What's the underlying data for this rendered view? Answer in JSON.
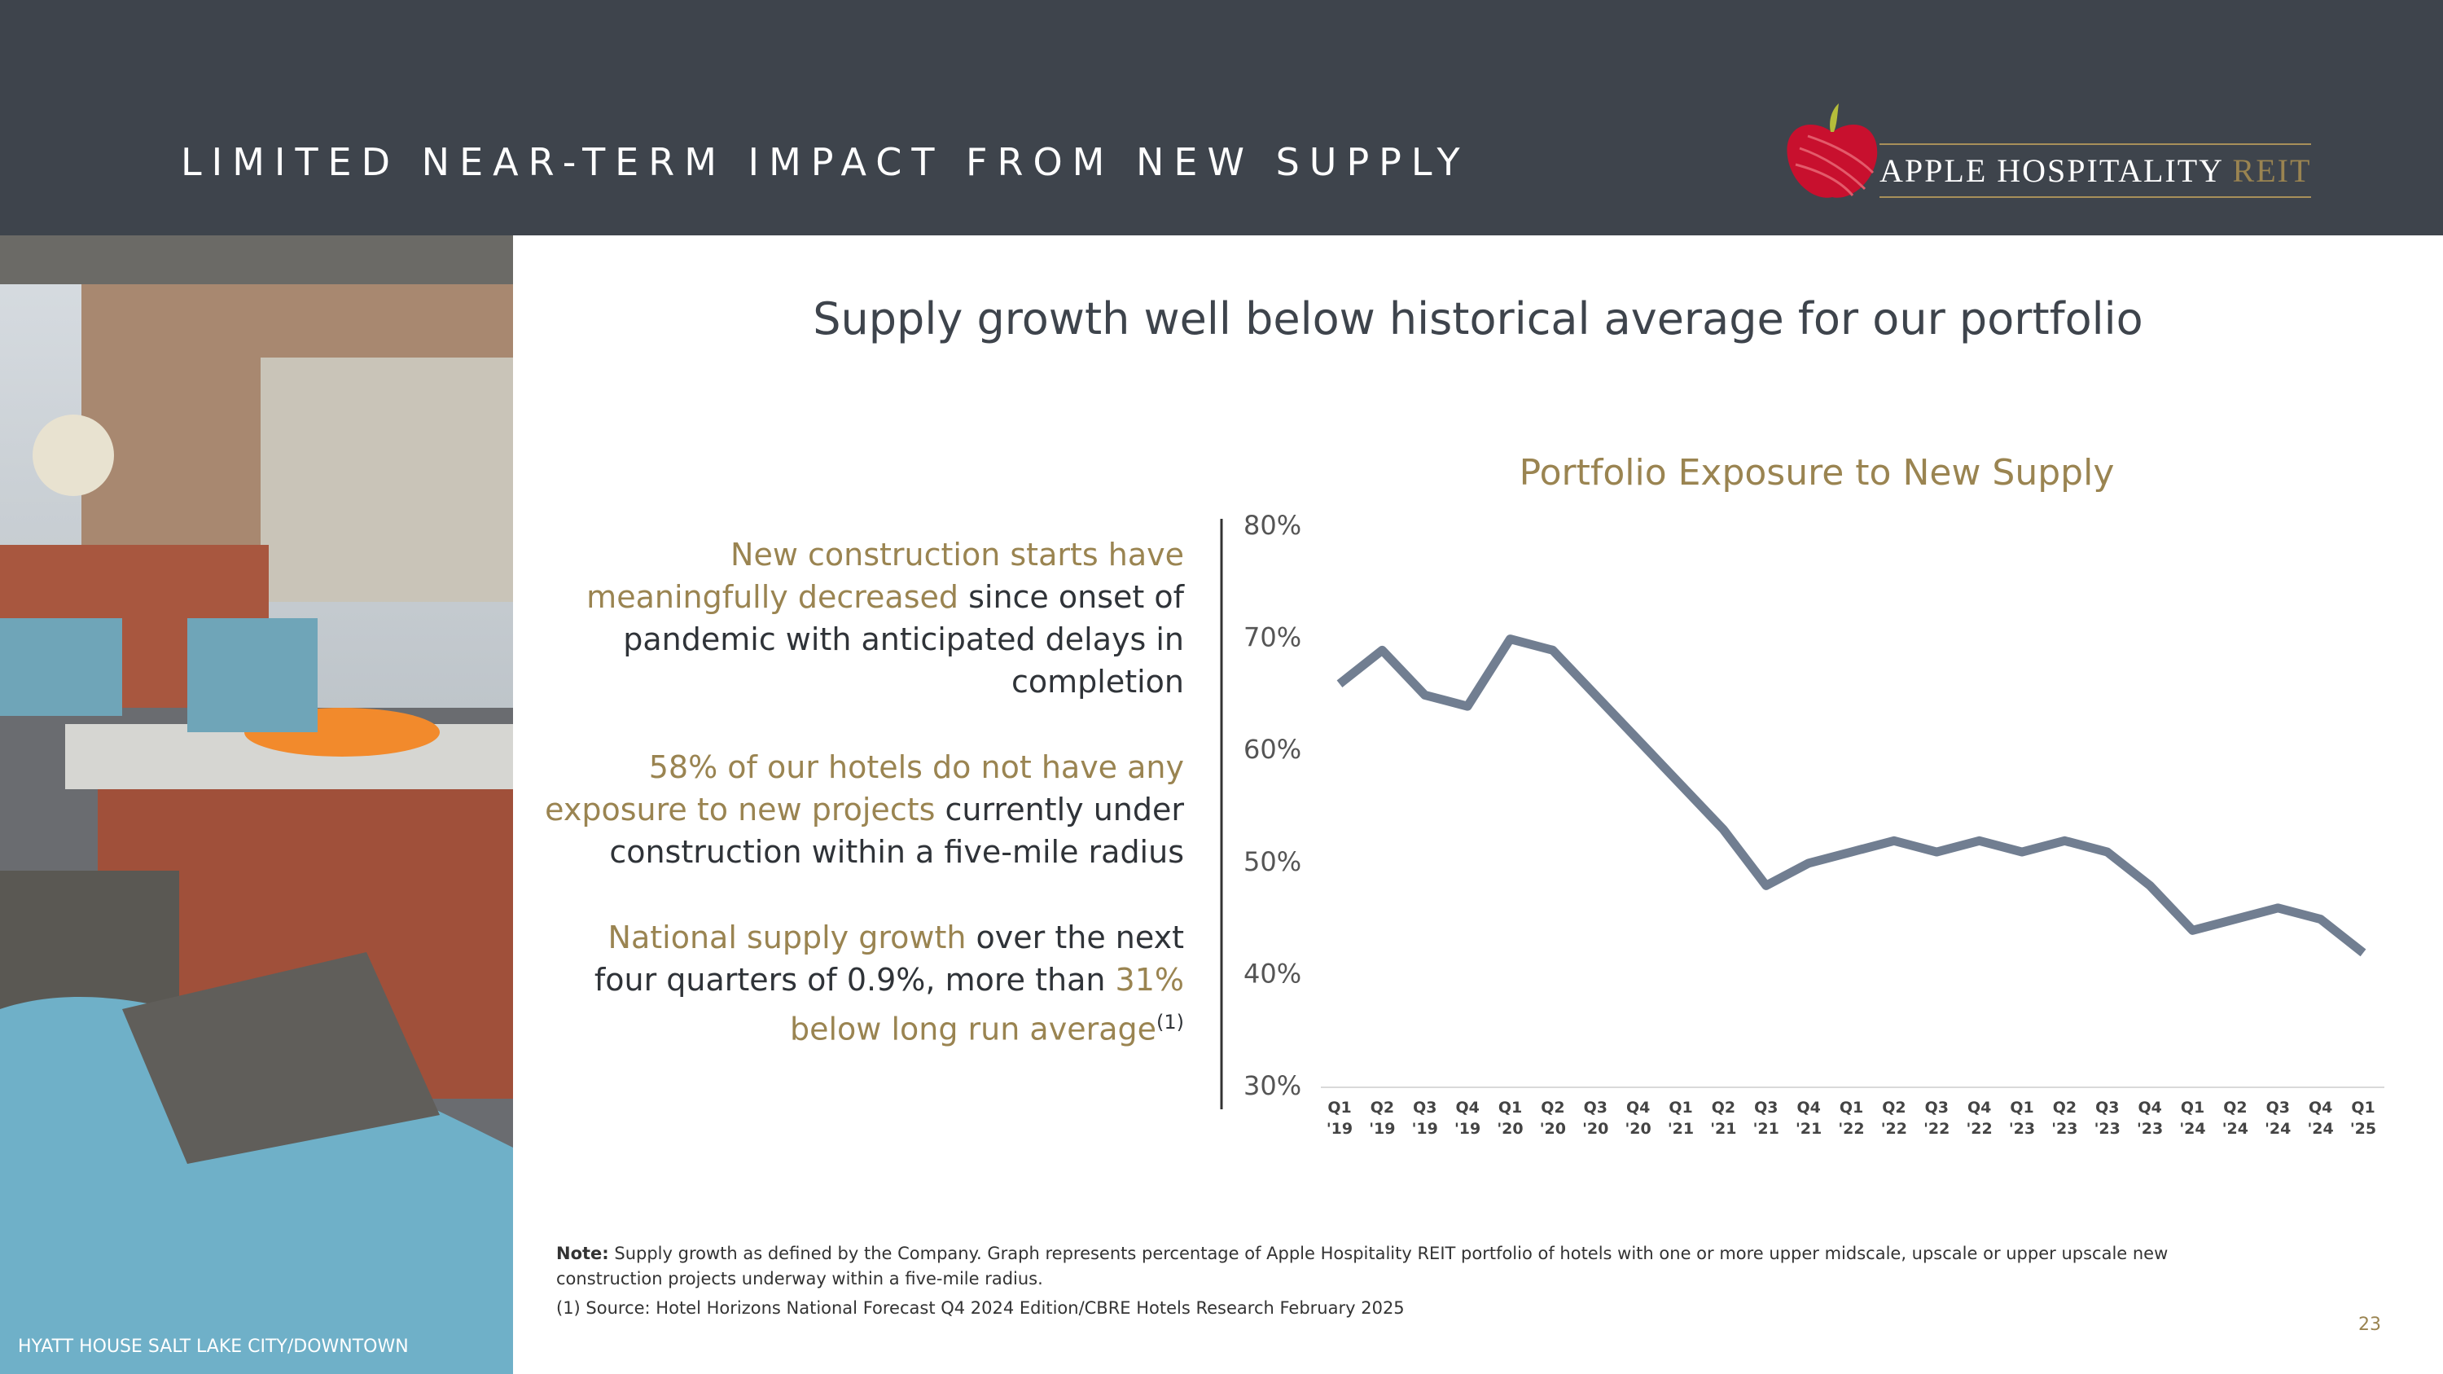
{
  "header": {
    "title": "LIMITED NEAR-TERM IMPACT FROM NEW SUPPLY",
    "logo_name": "APPLE HOSPITALITY",
    "logo_suffix": "REIT"
  },
  "photo_caption": "HYATT HOUSE SALT LAKE CITY/DOWNTOWN",
  "headline": "Supply growth well below historical average for our portfolio",
  "bullets": [
    {
      "highlight": "New construction starts have meaningfully decreased",
      "rest": "since onset of pandemic with anticipated delays in completion"
    },
    {
      "highlight": "58% of our hotels do not have any exposure to new projects",
      "rest": "currently under construction within a five-mile radius"
    },
    {
      "lead": "National supply growth",
      "middle": "over the next four quarters of 0.9%, more than",
      "highlight": "31% below long run average",
      "sup": "(1)"
    }
  ],
  "footnotes": {
    "note_label": "Note:",
    "note_text": "Supply growth as defined by the Company. Graph represents percentage of Apple Hospitality REIT portfolio of hotels with one or more upper midscale, upscale or upper upscale new construction projects underway within a five-mile radius.",
    "source": "(1) Source: Hotel Horizons National Forecast Q4 2024 Edition/CBRE Hotels Research February 2025"
  },
  "page_number": "23",
  "chart_data": {
    "type": "line",
    "title": "Portfolio Exposure to New Supply",
    "categories": [
      "Q1 '19",
      "Q2 '19",
      "Q3 '19",
      "Q4 '19",
      "Q1 '20",
      "Q2 '20",
      "Q3 '20",
      "Q4 '20",
      "Q1 '21",
      "Q2 '21",
      "Q3 '21",
      "Q4 '21",
      "Q1 '22",
      "Q2 '22",
      "Q3 '22",
      "Q4 '22",
      "Q1 '23",
      "Q2 '23",
      "Q3 '23",
      "Q4 '23",
      "Q1 '24",
      "Q2 '24",
      "Q3 '24",
      "Q4 '24",
      "Q1 '25"
    ],
    "values": [
      66,
      69,
      65,
      64,
      70,
      69,
      65,
      61,
      57,
      53,
      48,
      50,
      51,
      52,
      51,
      52,
      51,
      52,
      51,
      48,
      44,
      45,
      46,
      45,
      42
    ],
    "color": "#717e91",
    "ylim": [
      30,
      80
    ],
    "yticks": [
      {
        "value": 30,
        "label": "30%"
      },
      {
        "value": 40,
        "label": "40%"
      },
      {
        "value": 50,
        "label": "50%"
      },
      {
        "value": 60,
        "label": "60%"
      },
      {
        "value": 70,
        "label": "70%"
      },
      {
        "value": 80,
        "label": "80%"
      }
    ]
  }
}
